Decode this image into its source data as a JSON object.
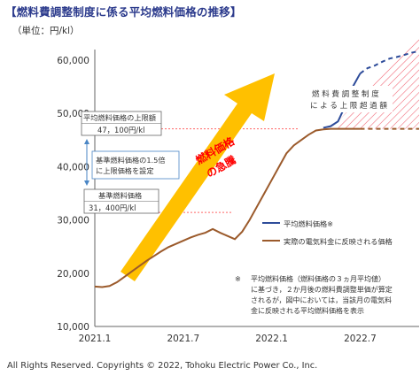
{
  "header": {
    "title": "【燃料費調整制度に係る平均燃料価格の推移】",
    "unit_label": "（単位：円/kl）"
  },
  "footer": {
    "copyright": "All Rights Reserved.  Copyrights © 2022,   Tohoku Electric Power Co.,   Inc."
  },
  "chart_data": {
    "type": "line",
    "title": "【燃料費調整制度に係る平均燃料価格の推移】",
    "ylabel": "（単位：円/kl）",
    "ylim": [
      10000,
      60000
    ],
    "yticks": [
      "60,000",
      "50,000",
      "40,000",
      "30,000",
      "20,000",
      "10,000"
    ],
    "ytick_values": [
      60000,
      50000,
      40000,
      30000,
      20000,
      10000
    ],
    "xticks": [
      "2021.1",
      "2021.7",
      "2022.1",
      "2022.7"
    ],
    "xtick_values": [
      0,
      6,
      12,
      18
    ],
    "grid": false,
    "legend_position": "right",
    "series": [
      {
        "name": "平均燃料価格※",
        "color": "#2e4c9a",
        "x": [
          0,
          0.5,
          1,
          1.5,
          2,
          2.5,
          3,
          3.5,
          4,
          4.5,
          5,
          5.5,
          6,
          6.5,
          7,
          7.5,
          8,
          8.5,
          9,
          9.5,
          10,
          10.5,
          11,
          11.5,
          12,
          12.5,
          13,
          13.5,
          14,
          14.5,
          15,
          15.5,
          16,
          16.5,
          17,
          17.5,
          18,
          18.5,
          19,
          19.5,
          20,
          20.5,
          21,
          21.5,
          22
        ],
        "values": [
          17500,
          17400,
          17600,
          18300,
          19300,
          20300,
          21300,
          22300,
          23200,
          24100,
          24900,
          25500,
          26100,
          26700,
          27200,
          27600,
          28300,
          27600,
          27000,
          26400,
          27800,
          30000,
          32500,
          35000,
          37500,
          40000,
          42500,
          44000,
          45000,
          46000,
          46800,
          47300,
          47600,
          48500,
          51500,
          55000,
          57500,
          58500,
          59000,
          59700,
          60300,
          60600,
          61000,
          61400,
          61700
        ]
      },
      {
        "name": "実際の電気料金に反映される価格",
        "color": "#9b5a2b",
        "x": [
          0,
          0.5,
          1,
          1.5,
          2,
          2.5,
          3,
          3.5,
          4,
          4.5,
          5,
          5.5,
          6,
          6.5,
          7,
          7.5,
          8,
          8.5,
          9,
          9.5,
          10,
          10.5,
          11,
          11.5,
          12,
          12.5,
          13,
          13.5,
          14,
          14.5,
          15,
          15.5,
          16,
          16.5,
          17,
          17.5,
          18,
          18.5,
          19,
          19.5,
          20,
          20.5,
          21,
          21.5,
          22
        ],
        "values": [
          17500,
          17400,
          17600,
          18300,
          19300,
          20300,
          21300,
          22300,
          23200,
          24100,
          24900,
          25500,
          26100,
          26700,
          27200,
          27600,
          28300,
          27600,
          27000,
          26400,
          27800,
          30000,
          32500,
          35000,
          37500,
          40000,
          42500,
          44000,
          45000,
          46000,
          46800,
          47000,
          47100,
          47100,
          47100,
          47100,
          47100,
          47100,
          47100,
          47100,
          47100,
          47100,
          47100,
          47100,
          47100
        ]
      }
    ],
    "reference_lines": [
      {
        "label": "平均燃料価格の上限額",
        "value_label": "47，100円/kl",
        "value": 47100
      },
      {
        "label": "基準燃料価格",
        "value_label": "31，400円/kl",
        "value": 31400
      }
    ],
    "annotations": {
      "multiplier_line1": "基準燃料価格の1.5倍",
      "multiplier_line2": "に上限価格を設定",
      "surge_line1": "燃料価格",
      "surge_line2": "の急騰",
      "excess_line1": "燃 料 費 調 整 制 度",
      "excess_line2": "に よ る 上 限 超 過 額",
      "note_mark": "※",
      "note_lines": [
        "平均燃料価格（燃料価格の３ヵ月平均値）",
        "に基づき，２か月後の燃料費調整単価が算定",
        "されるが，図中においては，当該月の電気料",
        "金に反映される平均燃料価格を表示"
      ]
    },
    "colors": {
      "arrow": "#ffc000",
      "surge_text": "#ff0000",
      "hatch": "#f06070",
      "ref_line": "#ff6666",
      "bracket": "#4a86c5"
    }
  }
}
